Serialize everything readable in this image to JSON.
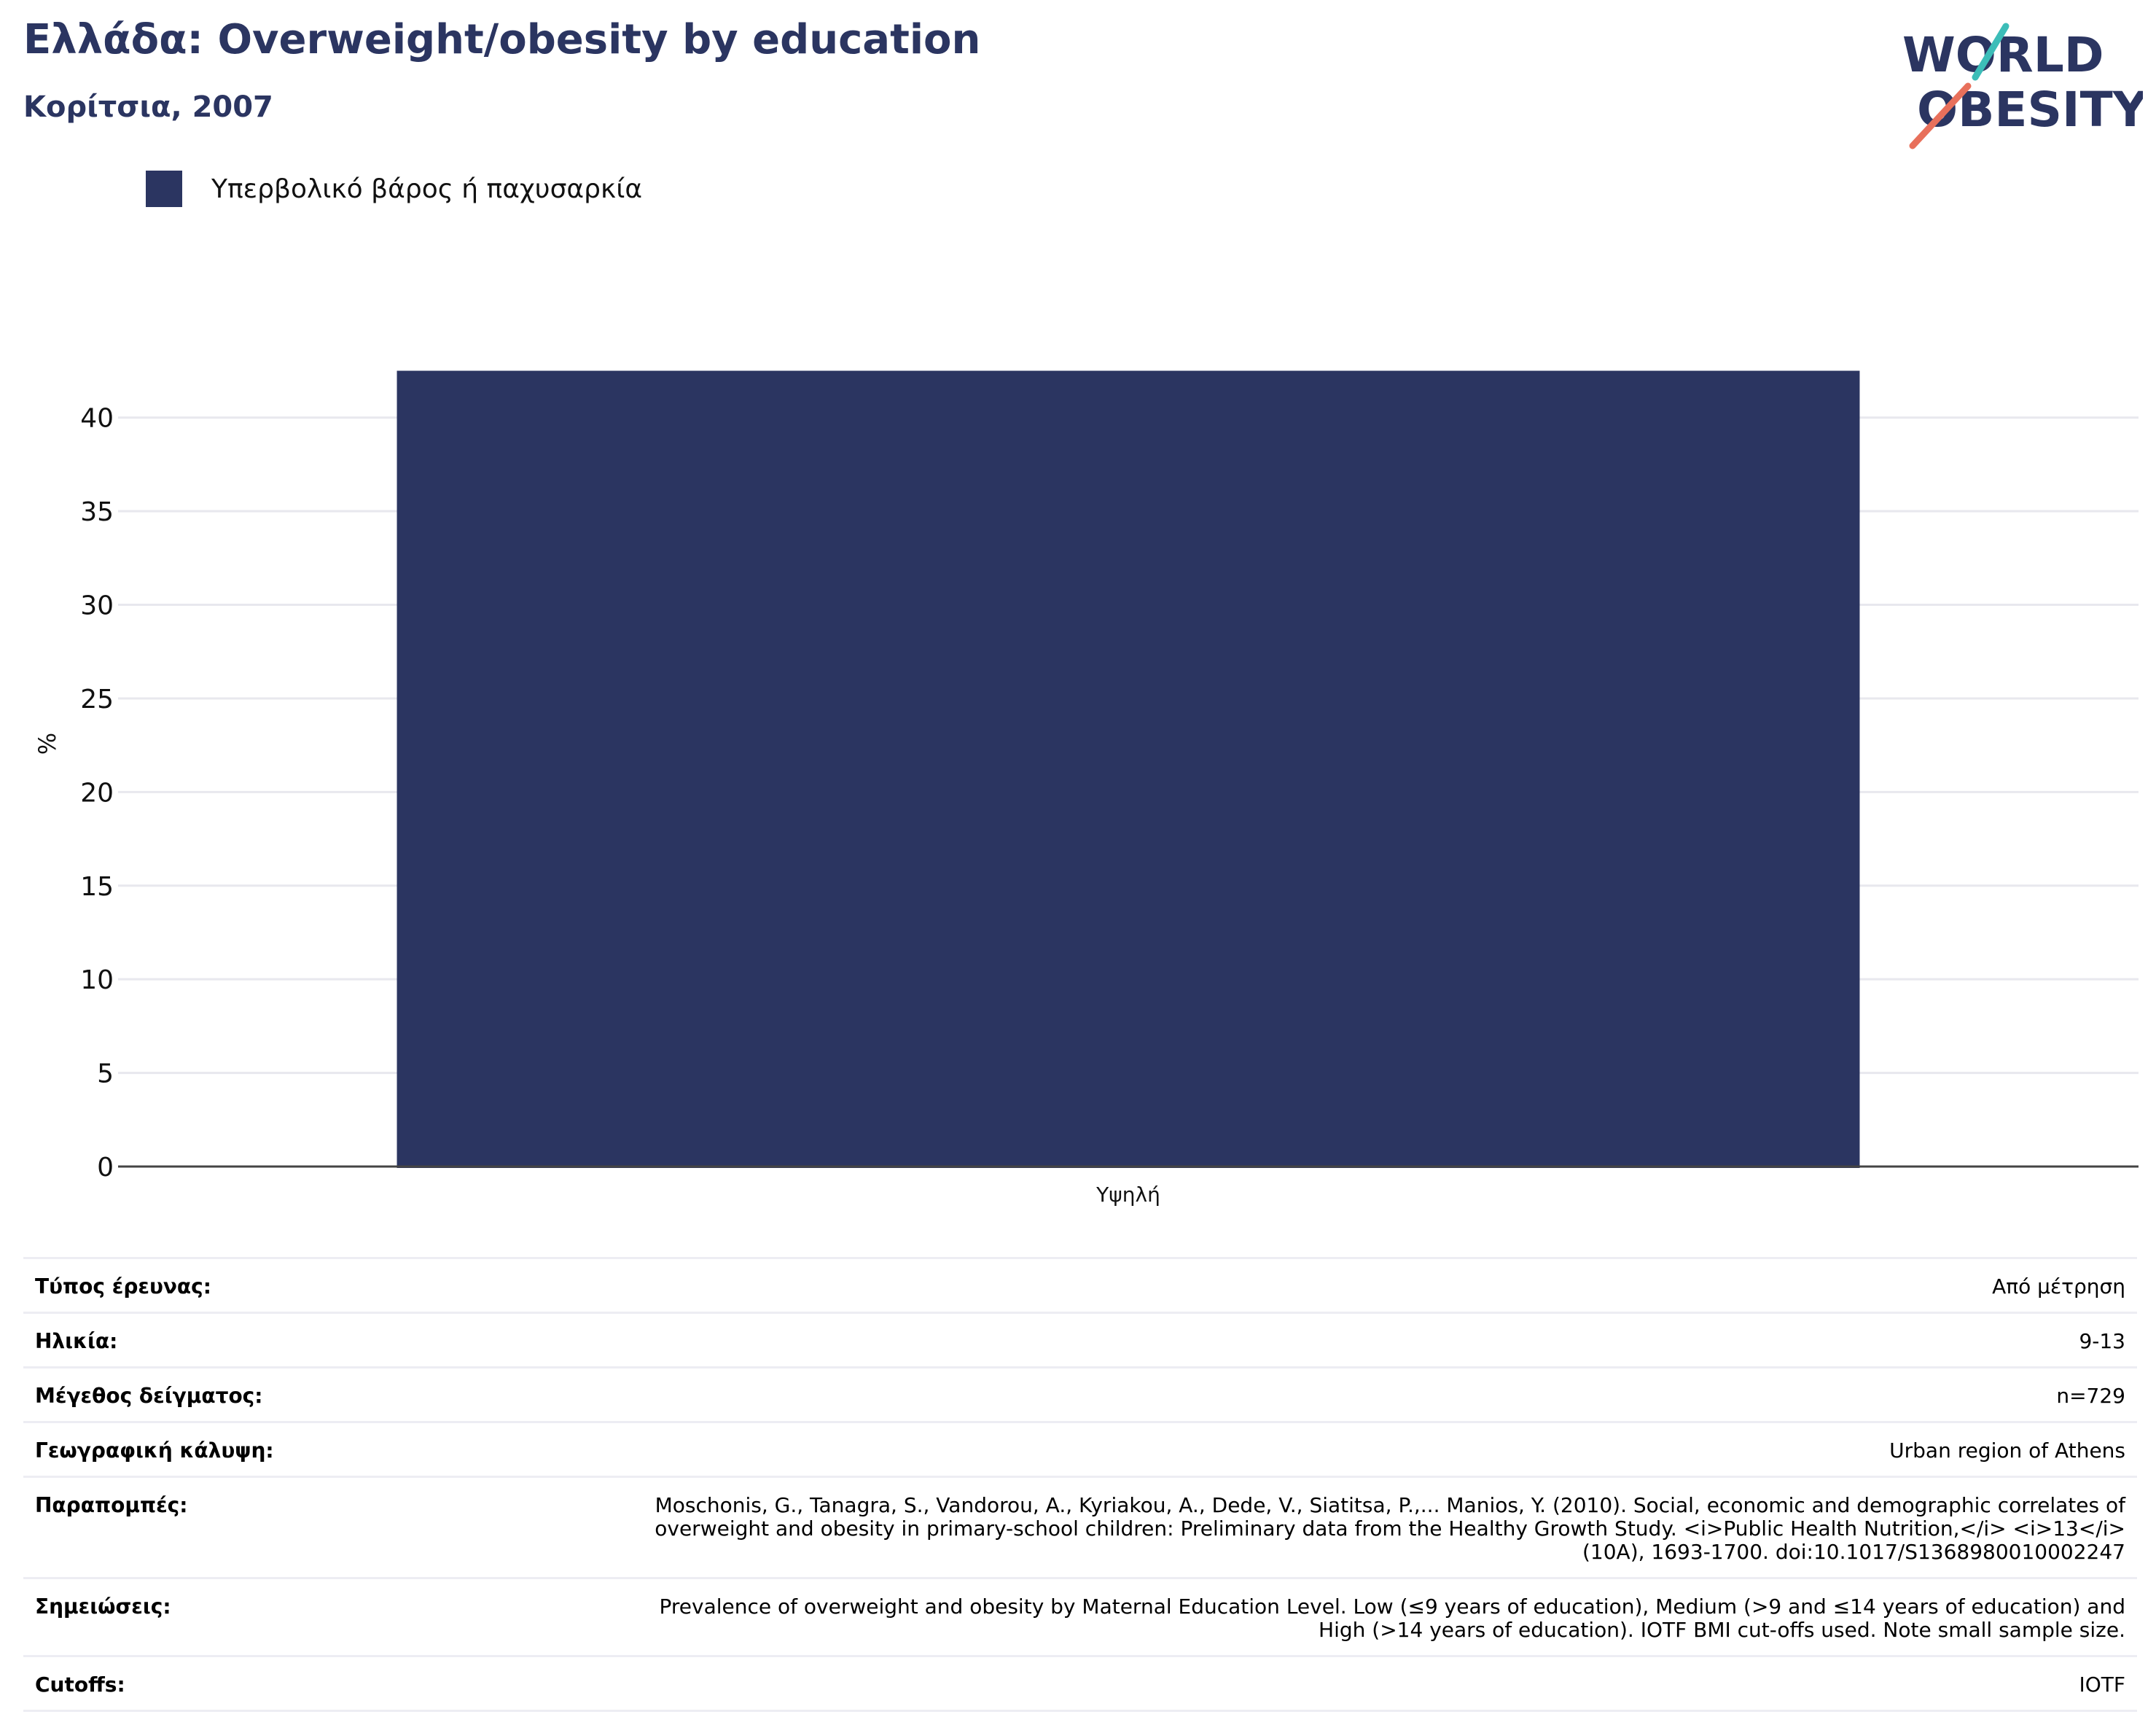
{
  "header": {
    "title": "Ελλάδα: Overweight/obesity by education",
    "subtitle": "Κορίτσια, 2007"
  },
  "logo": {
    "line1": "WORLD",
    "line2": "OBESITY",
    "navy": "#2b3561",
    "teal": "#3cbdb8",
    "coral": "#e8705b"
  },
  "chart_data": {
    "type": "bar",
    "categories": [
      "Υψηλή"
    ],
    "series": [
      {
        "name": "Υπερβολικό βάρος ή παχυσαρκία",
        "values": [
          42.5
        ],
        "color": "#2b3561"
      }
    ],
    "ylabel": "%",
    "xlabel": "",
    "ylim": [
      0,
      44
    ],
    "yticks": [
      0,
      5,
      10,
      15,
      20,
      25,
      30,
      35,
      40
    ],
    "grid": true,
    "legend": "top-left"
  },
  "info": [
    {
      "label": "Τύπος έρευνας:",
      "value": "Από μέτρηση"
    },
    {
      "label": "Ηλικία:",
      "value": "9-13"
    },
    {
      "label": "Μέγεθος δείγματος:",
      "value": "n=729"
    },
    {
      "label": "Γεωγραφική κάλυψη:",
      "value": "Urban region of Athens"
    },
    {
      "label": "Παραπομπές:",
      "value": "Moschonis, G., Tanagra, S., Vandorou, A., Kyriakou, A., Dede, V., Siatitsa, P.,... Manios, Y. (2010). Social, economic and demographic correlates of overweight and obesity in primary-school children: Preliminary data from the Healthy Growth Study. <i>Public Health Nutrition,</i> <i>13</i>(10A), 1693-1700. doi:10.1017/S1368980010002247"
    },
    {
      "label": "Σημειώσεις:",
      "value": "Prevalence of overweight and obesity by Maternal Education Level. Low (≤9 years of education), Medium (>9 and ≤14 years of education) and High (>14 years of education). IOTF BMI cut-offs used. Note small sample size."
    },
    {
      "label": "Cutoffs:",
      "value": "IOTF"
    }
  ]
}
